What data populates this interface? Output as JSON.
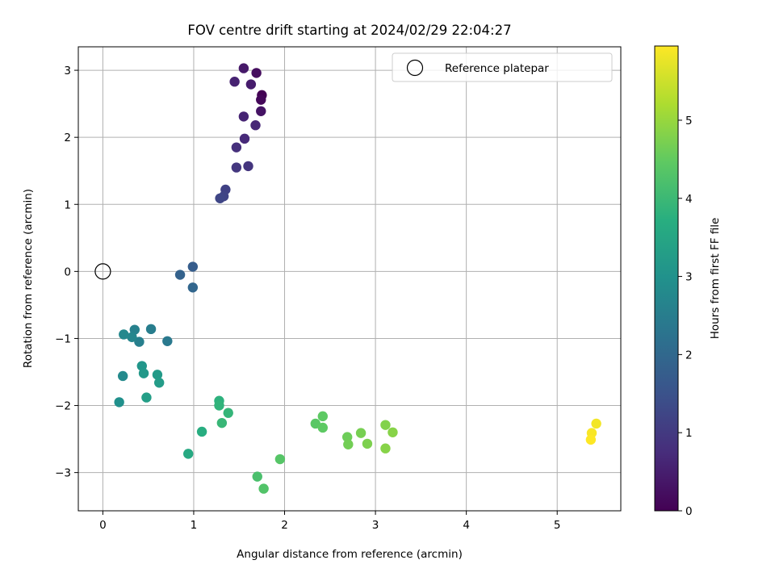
{
  "chart_data": {
    "type": "scatter",
    "title": "FOV centre drift starting at 2024/02/29 22:04:27",
    "xlabel": "Angular distance from reference (arcmin)",
    "ylabel": "Rotation from reference (arcmin)",
    "xlim": [
      -0.27,
      5.7
    ],
    "ylim": [
      -3.57,
      3.35
    ],
    "x_ticks": [
      0,
      1,
      2,
      3,
      4,
      5
    ],
    "y_ticks": [
      -3,
      -2,
      -1,
      0,
      1,
      2,
      3
    ],
    "grid": true,
    "legend": {
      "placement": "top-right",
      "entries": [
        "Reference platepar"
      ]
    },
    "reference_point": {
      "x": 0,
      "y": 0
    },
    "colorbar": {
      "label": "Hours from first FF file",
      "colormap": "viridis",
      "range": [
        0,
        5.95
      ],
      "ticks": [
        0,
        1,
        2,
        3,
        4,
        5
      ]
    },
    "points": [
      {
        "x": 1.75,
        "y": 2.63,
        "h": 0.0
      },
      {
        "x": 1.74,
        "y": 2.56,
        "h": 0.1
      },
      {
        "x": 1.69,
        "y": 2.96,
        "h": 0.2
      },
      {
        "x": 1.74,
        "y": 2.39,
        "h": 0.3
      },
      {
        "x": 1.55,
        "y": 3.03,
        "h": 0.4
      },
      {
        "x": 1.63,
        "y": 2.79,
        "h": 0.45
      },
      {
        "x": 1.45,
        "y": 2.83,
        "h": 0.55
      },
      {
        "x": 1.55,
        "y": 2.31,
        "h": 0.6
      },
      {
        "x": 1.68,
        "y": 2.18,
        "h": 0.65
      },
      {
        "x": 1.56,
        "y": 1.98,
        "h": 0.7
      },
      {
        "x": 1.47,
        "y": 1.85,
        "h": 0.8
      },
      {
        "x": 1.6,
        "y": 1.57,
        "h": 0.9
      },
      {
        "x": 1.47,
        "y": 1.55,
        "h": 0.95
      },
      {
        "x": 1.35,
        "y": 1.22,
        "h": 1.15
      },
      {
        "x": 1.33,
        "y": 1.12,
        "h": 1.2
      },
      {
        "x": 1.29,
        "y": 1.09,
        "h": 1.25
      },
      {
        "x": 0.99,
        "y": 0.07,
        "h": 1.75
      },
      {
        "x": 0.85,
        "y": -0.05,
        "h": 1.85
      },
      {
        "x": 0.99,
        "y": -0.24,
        "h": 1.95
      },
      {
        "x": 0.71,
        "y": -1.04,
        "h": 2.4
      },
      {
        "x": 0.53,
        "y": -0.86,
        "h": 2.5
      },
      {
        "x": 0.4,
        "y": -1.05,
        "h": 2.55
      },
      {
        "x": 0.35,
        "y": -0.87,
        "h": 2.6
      },
      {
        "x": 0.32,
        "y": -0.98,
        "h": 2.7
      },
      {
        "x": 0.23,
        "y": -0.94,
        "h": 2.75
      },
      {
        "x": 0.22,
        "y": -1.56,
        "h": 2.8
      },
      {
        "x": 0.18,
        "y": -1.95,
        "h": 2.95
      },
      {
        "x": 0.43,
        "y": -1.41,
        "h": 3.1
      },
      {
        "x": 0.45,
        "y": -1.52,
        "h": 3.15
      },
      {
        "x": 0.6,
        "y": -1.54,
        "h": 3.2
      },
      {
        "x": 0.62,
        "y": -1.66,
        "h": 3.25
      },
      {
        "x": 0.48,
        "y": -1.88,
        "h": 3.3
      },
      {
        "x": 0.94,
        "y": -2.72,
        "h": 3.6
      },
      {
        "x": 1.09,
        "y": -2.39,
        "h": 3.7
      },
      {
        "x": 1.28,
        "y": -1.93,
        "h": 3.8
      },
      {
        "x": 1.28,
        "y": -2.0,
        "h": 3.85
      },
      {
        "x": 1.38,
        "y": -2.11,
        "h": 3.9
      },
      {
        "x": 1.31,
        "y": -2.26,
        "h": 3.95
      },
      {
        "x": 1.7,
        "y": -3.06,
        "h": 4.2
      },
      {
        "x": 1.77,
        "y": -3.24,
        "h": 4.3
      },
      {
        "x": 1.95,
        "y": -2.8,
        "h": 4.35
      },
      {
        "x": 2.34,
        "y": -2.27,
        "h": 4.4
      },
      {
        "x": 2.42,
        "y": -2.16,
        "h": 4.45
      },
      {
        "x": 2.42,
        "y": -2.33,
        "h": 4.45
      },
      {
        "x": 2.69,
        "y": -2.47,
        "h": 4.6
      },
      {
        "x": 2.7,
        "y": -2.58,
        "h": 4.65
      },
      {
        "x": 2.84,
        "y": -2.41,
        "h": 4.7
      },
      {
        "x": 2.91,
        "y": -2.57,
        "h": 4.75
      },
      {
        "x": 3.11,
        "y": -2.29,
        "h": 4.8
      },
      {
        "x": 3.19,
        "y": -2.4,
        "h": 4.85
      },
      {
        "x": 3.11,
        "y": -2.64,
        "h": 4.85
      },
      {
        "x": 5.43,
        "y": -2.27,
        "h": 5.85
      },
      {
        "x": 5.38,
        "y": -2.41,
        "h": 5.9
      },
      {
        "x": 5.37,
        "y": -2.51,
        "h": 5.95
      }
    ]
  }
}
